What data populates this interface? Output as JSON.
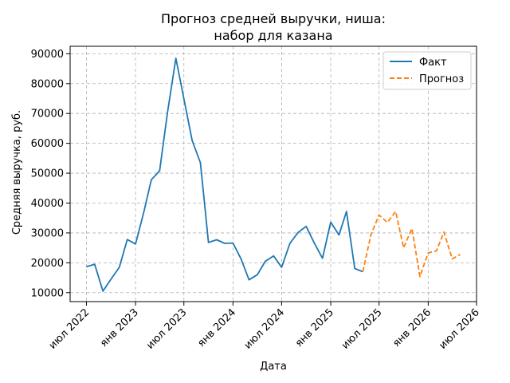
{
  "chart_data": {
    "type": "line",
    "title_line1": "Прогноз средней выручки, ниша:",
    "title_line2": "набор для казана",
    "xlabel": "Дата",
    "ylabel": "Средняя выручка, руб.",
    "xlim": [
      "2022-05-01",
      "2026-07-01"
    ],
    "ylim": [
      7000,
      92500
    ],
    "grid": true,
    "legend_position": "top-right",
    "x_ticks": [
      {
        "date": "2022-07-01",
        "label": "июл 2022"
      },
      {
        "date": "2023-01-01",
        "label": "янв 2023"
      },
      {
        "date": "2023-07-01",
        "label": "июл 2023"
      },
      {
        "date": "2024-01-01",
        "label": "янв 2024"
      },
      {
        "date": "2024-07-01",
        "label": "июл 2024"
      },
      {
        "date": "2025-01-01",
        "label": "янв 2025"
      },
      {
        "date": "2025-07-01",
        "label": "июл 2025"
      },
      {
        "date": "2026-01-01",
        "label": "янв 2026"
      },
      {
        "date": "2026-07-01",
        "label": "июл 2026"
      }
    ],
    "y_ticks": [
      10000,
      20000,
      30000,
      40000,
      50000,
      60000,
      70000,
      80000,
      90000
    ],
    "series": [
      {
        "name": "Факт",
        "color": "#1f77b4",
        "style": "solid",
        "x": [
          "2022-07-01",
          "2022-08-01",
          "2022-09-01",
          "2022-10-01",
          "2022-11-01",
          "2022-12-01",
          "2023-01-01",
          "2023-02-01",
          "2023-03-01",
          "2023-04-01",
          "2023-05-01",
          "2023-06-01",
          "2023-07-01",
          "2023-08-01",
          "2023-09-01",
          "2023-10-01",
          "2023-11-01",
          "2023-12-01",
          "2024-01-01",
          "2024-02-01",
          "2024-03-01",
          "2024-04-01",
          "2024-05-01",
          "2024-06-01",
          "2024-07-01",
          "2024-08-01",
          "2024-09-01",
          "2024-10-01",
          "2024-11-01",
          "2024-12-01",
          "2025-01-01",
          "2025-02-01",
          "2025-03-01",
          "2025-04-01",
          "2025-05-01"
        ],
        "y": [
          18700,
          19500,
          10500,
          14500,
          18500,
          27800,
          26300,
          37000,
          47800,
          50800,
          70500,
          88500,
          75000,
          61000,
          53500,
          26800,
          27700,
          26500,
          26600,
          21100,
          14300,
          16000,
          20500,
          22300,
          18500,
          26500,
          30200,
          32200,
          26500,
          21500,
          33600,
          29300,
          37200,
          18100,
          17000
        ]
      },
      {
        "name": "Прогноз",
        "color": "#ff7f0e",
        "style": "dashed",
        "x": [
          "2025-05-01",
          "2025-06-01",
          "2025-07-01",
          "2025-08-01",
          "2025-09-01",
          "2025-10-01",
          "2025-11-01",
          "2025-12-01",
          "2026-01-01",
          "2026-02-01",
          "2026-03-01",
          "2026-04-01",
          "2026-05-01"
        ],
        "y": [
          17000,
          29500,
          36000,
          33500,
          37200,
          25000,
          31500,
          15400,
          23300,
          24000,
          30300,
          21300,
          22800
        ]
      }
    ]
  }
}
